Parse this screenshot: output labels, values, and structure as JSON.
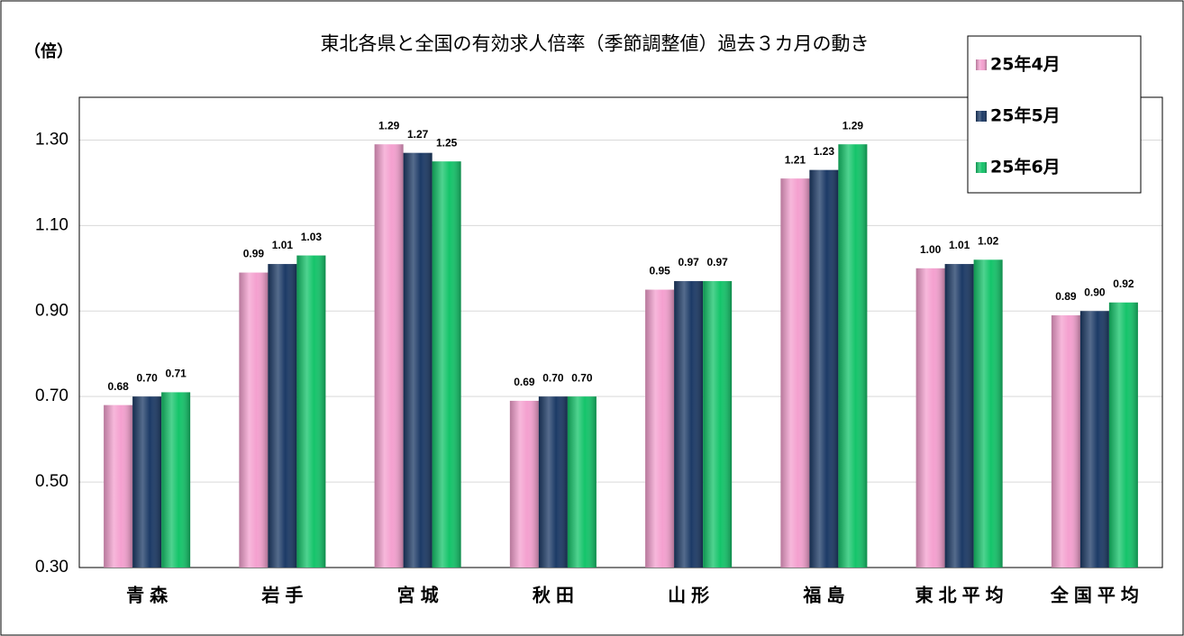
{
  "chart_data": {
    "type": "bar",
    "title": "東北各県と全国の有効求人倍率（季節調整値）過去３カ月の動き",
    "y_label": "（倍）",
    "categories": [
      "青森",
      "岩手",
      "宮城",
      "秋田",
      "山形",
      "福島",
      "東北平均",
      "全国平均"
    ],
    "series": [
      {
        "name": "25年4月",
        "color": "#f4a0cf",
        "values": [
          0.68,
          0.99,
          1.29,
          0.69,
          0.95,
          1.21,
          1.0,
          0.89
        ],
        "value_labels": [
          "0.68",
          "0.99",
          "1.29",
          "0.69",
          "0.95",
          "1.21",
          "1.00",
          "0.89"
        ]
      },
      {
        "name": "25年5月",
        "color": "#1c3a66",
        "values": [
          0.7,
          1.01,
          1.27,
          0.7,
          0.97,
          1.23,
          1.01,
          0.9
        ],
        "value_labels": [
          "0.70",
          "1.01",
          "1.27",
          "0.70",
          "0.97",
          "1.23",
          "1.01",
          "0.90"
        ]
      },
      {
        "name": "25年6月",
        "color": "#14c46a",
        "values": [
          0.71,
          1.03,
          1.25,
          0.7,
          0.97,
          1.29,
          1.02,
          0.92
        ],
        "value_labels": [
          "0.71",
          "1.03",
          "1.25",
          "0.70",
          "0.97",
          "1.29",
          "1.02",
          "0.92"
        ]
      }
    ],
    "ylim": [
      0.3,
      1.4
    ],
    "yticks": [
      {
        "value": 0.3,
        "label": "0.30"
      },
      {
        "value": 0.5,
        "label": "0.50"
      },
      {
        "value": 0.7,
        "label": "0.70"
      },
      {
        "value": 0.9,
        "label": "0.90"
      },
      {
        "value": 1.1,
        "label": "1.10"
      },
      {
        "value": 1.3,
        "label": "1.30"
      }
    ],
    "grid": true,
    "legend": "upper right"
  }
}
